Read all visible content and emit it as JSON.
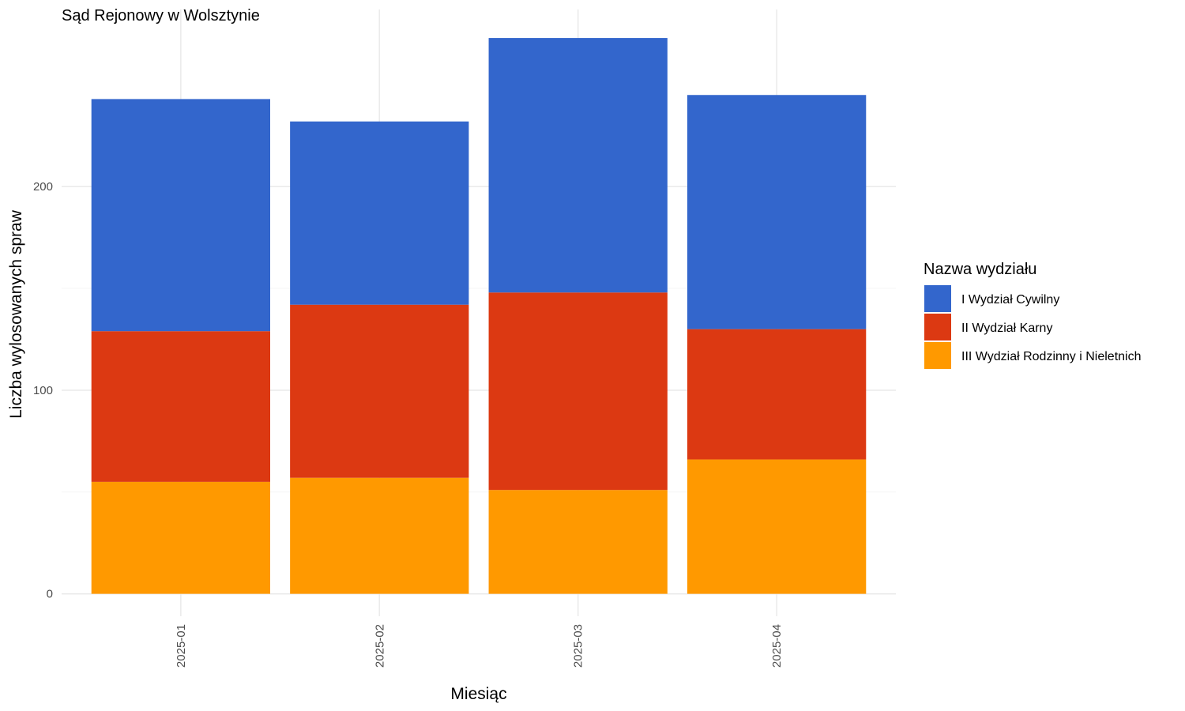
{
  "chart_data": {
    "type": "bar",
    "stacked": true,
    "title": "Sąd Rejonowy w Wolsztynie",
    "xlabel": "Miesiąc",
    "ylabel": "Liczba wylosowanych spraw",
    "categories": [
      "2025-01",
      "2025-02",
      "2025-03",
      "2025-04"
    ],
    "ylim": [
      -11,
      287
    ],
    "y_ticks": [
      0,
      100,
      200
    ],
    "grid": true,
    "legend": {
      "title": "Nazwa wydziału",
      "position": "right"
    },
    "series": [
      {
        "name": "III Wydział Rodzinny i Nieletnich",
        "color": "#FF9900",
        "values": [
          55,
          57,
          51,
          66
        ]
      },
      {
        "name": "II Wydział Karny",
        "color": "#DC3912",
        "values": [
          74,
          85,
          97,
          64
        ]
      },
      {
        "name": "I Wydział Cywilny",
        "color": "#3366CC",
        "values": [
          114,
          90,
          125,
          115
        ]
      }
    ],
    "legend_order": [
      "I Wydział Cywilny",
      "II Wydział Karny",
      "III Wydział Rodzinny i Nieletnich"
    ]
  }
}
